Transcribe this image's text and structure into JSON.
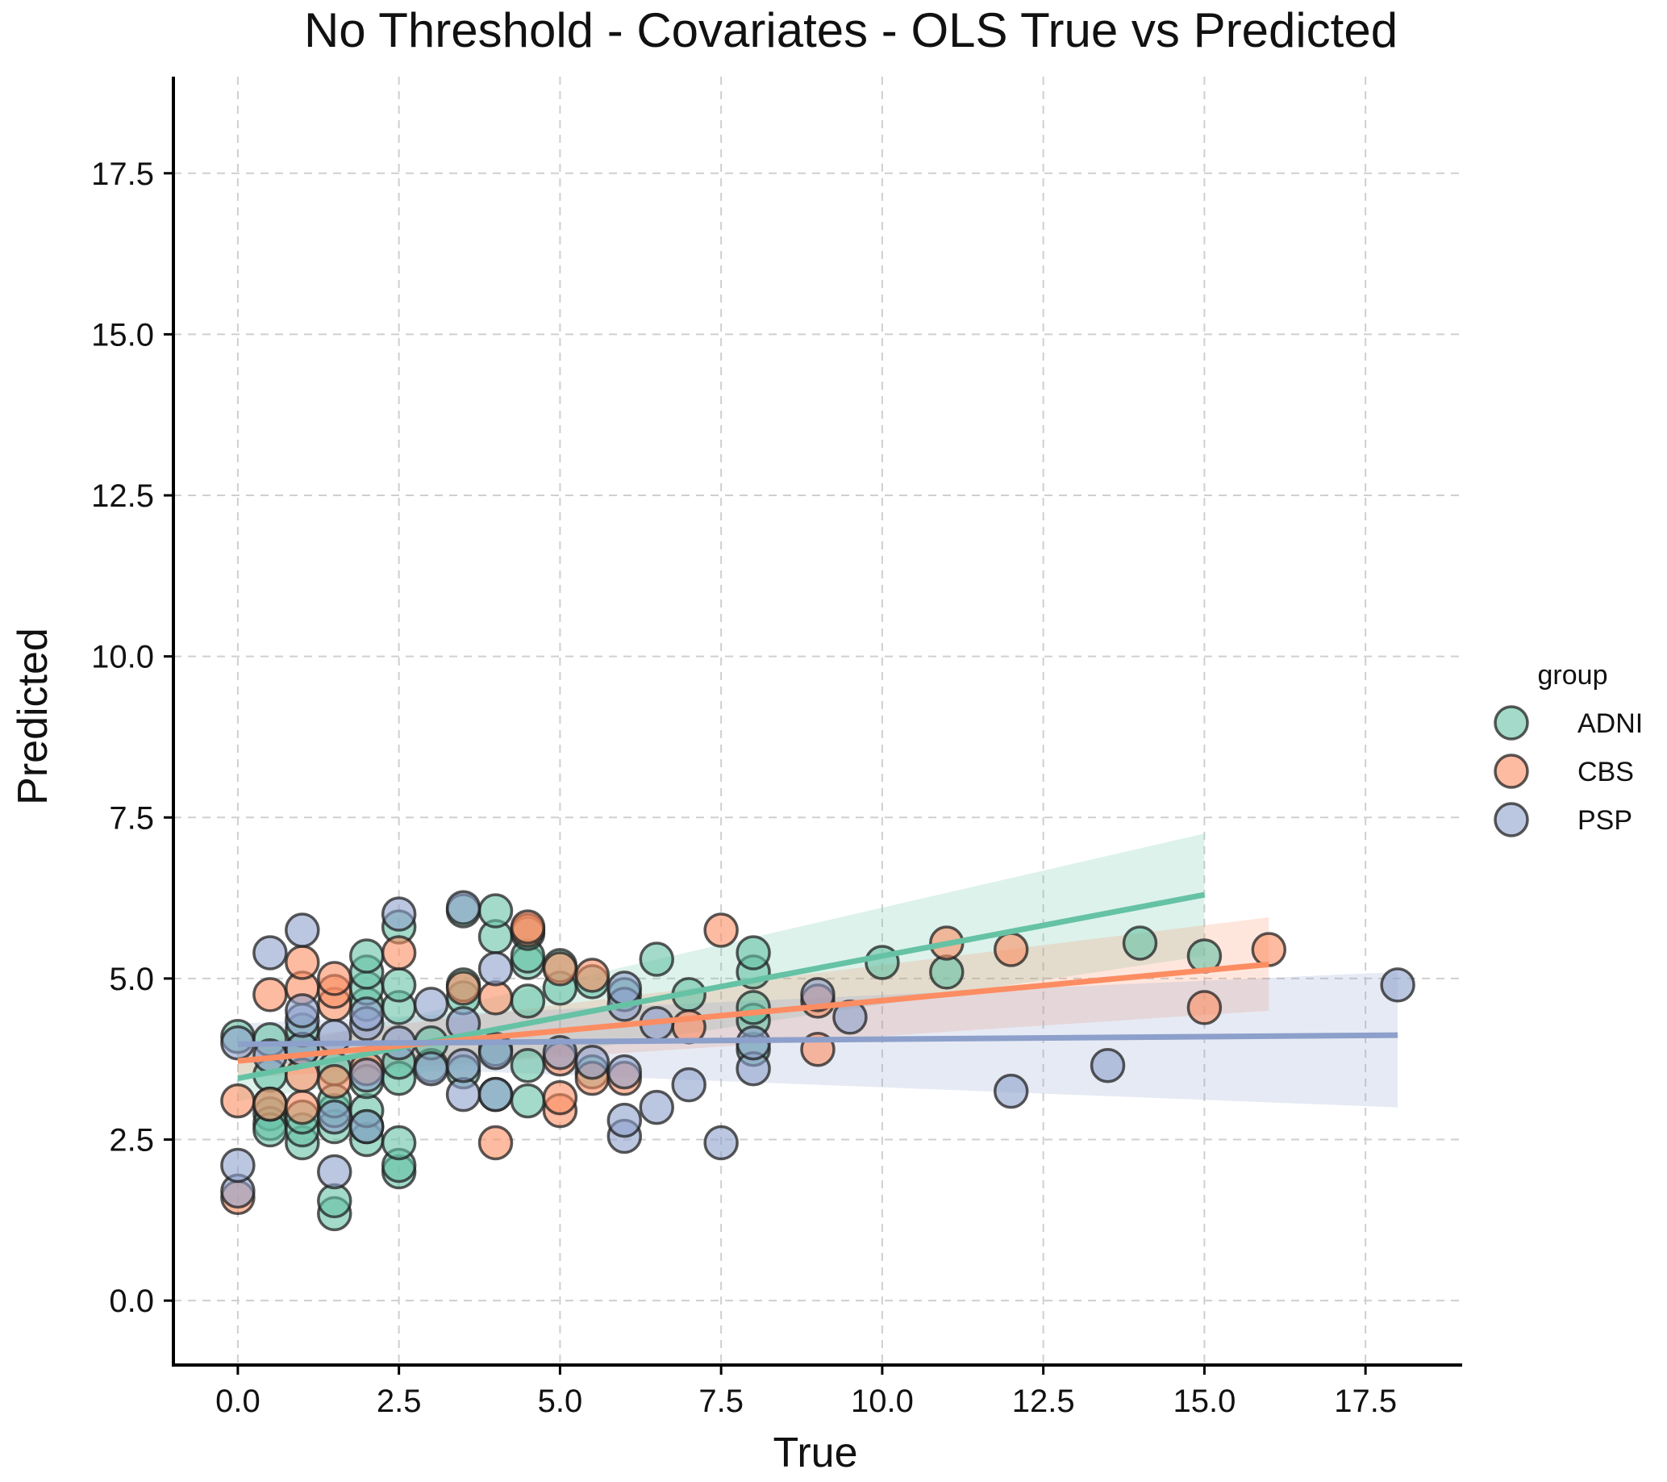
{
  "chart_data": {
    "type": "scatter",
    "title": "No Threshold - Covariates - OLS True vs Predicted",
    "xlabel": "True",
    "ylabel": "Predicted",
    "xlim": [
      -1.0,
      19.0
    ],
    "ylim": [
      -1.0,
      19.0
    ],
    "xticks": [
      0.0,
      2.5,
      5.0,
      7.5,
      10.0,
      12.5,
      15.0,
      17.5
    ],
    "yticks": [
      0.0,
      2.5,
      5.0,
      7.5,
      10.0,
      12.5,
      15.0,
      17.5
    ],
    "xtick_labels": [
      "0.0",
      "2.5",
      "5.0",
      "7.5",
      "10.0",
      "12.5",
      "15.0",
      "17.5"
    ],
    "ytick_labels": [
      "0.0",
      "2.5",
      "5.0",
      "7.5",
      "10.0",
      "12.5",
      "15.0",
      "17.5"
    ],
    "grid": true,
    "legend": {
      "title": "group",
      "placement": "right"
    },
    "series": [
      {
        "name": "ADNI",
        "color": "#66c2a5",
        "regression": {
          "x": [
            0.0,
            15.0
          ],
          "y": [
            3.45,
            6.3
          ],
          "ci_low": [
            3.1,
            5.35
          ],
          "ci_high": [
            3.8,
            7.25
          ]
        },
        "points": [
          [
            0.0,
            4.1
          ],
          [
            0.5,
            4.05
          ],
          [
            0.5,
            3.5
          ],
          [
            0.5,
            2.9
          ],
          [
            0.5,
            2.75
          ],
          [
            0.5,
            2.65
          ],
          [
            0.5,
            3.05
          ],
          [
            1.0,
            2.45
          ],
          [
            1.0,
            2.65
          ],
          [
            1.0,
            2.85
          ],
          [
            1.0,
            3.9
          ],
          [
            1.0,
            4.2
          ],
          [
            1.5,
            1.35
          ],
          [
            1.5,
            1.55
          ],
          [
            1.5,
            2.7
          ],
          [
            1.5,
            2.95
          ],
          [
            1.5,
            3.1
          ],
          [
            1.5,
            3.6
          ],
          [
            2.0,
            2.5
          ],
          [
            2.0,
            2.7
          ],
          [
            2.0,
            2.95
          ],
          [
            2.0,
            3.4
          ],
          [
            2.0,
            4.6
          ],
          [
            2.0,
            4.85
          ],
          [
            2.0,
            5.1
          ],
          [
            2.0,
            5.35
          ],
          [
            2.5,
            2.0
          ],
          [
            2.5,
            2.1
          ],
          [
            2.5,
            2.45
          ],
          [
            2.5,
            3.45
          ],
          [
            2.5,
            3.7
          ],
          [
            2.5,
            4.55
          ],
          [
            2.5,
            4.9
          ],
          [
            2.5,
            5.8
          ],
          [
            3.0,
            3.65
          ],
          [
            3.0,
            4.0
          ],
          [
            3.5,
            3.55
          ],
          [
            3.5,
            4.7
          ],
          [
            3.5,
            4.9
          ],
          [
            3.5,
            6.05
          ],
          [
            4.0,
            3.2
          ],
          [
            4.0,
            3.9
          ],
          [
            4.0,
            5.65
          ],
          [
            4.0,
            6.05
          ],
          [
            4.5,
            3.1
          ],
          [
            4.5,
            3.65
          ],
          [
            4.5,
            4.65
          ],
          [
            4.5,
            5.25
          ],
          [
            4.5,
            5.35
          ],
          [
            4.5,
            5.7
          ],
          [
            5.0,
            4.85
          ],
          [
            5.0,
            5.2
          ],
          [
            5.5,
            4.95
          ],
          [
            5.5,
            3.55
          ],
          [
            6.0,
            4.75
          ],
          [
            6.5,
            5.3
          ],
          [
            7.0,
            4.75
          ],
          [
            8.0,
            3.9
          ],
          [
            8.0,
            4.35
          ],
          [
            8.0,
            4.55
          ],
          [
            8.0,
            5.1
          ],
          [
            8.0,
            5.4
          ],
          [
            10.0,
            5.25
          ],
          [
            11.0,
            5.1
          ],
          [
            14.0,
            5.55
          ],
          [
            15.0,
            5.35
          ]
        ]
      },
      {
        "name": "CBS",
        "color": "#fc8d62",
        "regression": {
          "x": [
            0.0,
            16.0
          ],
          "y": [
            3.72,
            5.22
          ],
          "ci_low": [
            3.45,
            4.5
          ],
          "ci_high": [
            3.98,
            5.95
          ]
        },
        "points": [
          [
            0.0,
            1.6
          ],
          [
            0.0,
            3.1
          ],
          [
            0.5,
            3.05
          ],
          [
            0.5,
            4.75
          ],
          [
            1.0,
            3.0
          ],
          [
            1.0,
            3.5
          ],
          [
            1.0,
            4.85
          ],
          [
            1.0,
            5.25
          ],
          [
            1.5,
            3.4
          ],
          [
            1.5,
            4.6
          ],
          [
            1.5,
            4.8
          ],
          [
            1.5,
            5.0
          ],
          [
            2.0,
            3.6
          ],
          [
            2.5,
            5.4
          ],
          [
            3.5,
            4.85
          ],
          [
            4.0,
            2.45
          ],
          [
            4.0,
            4.7
          ],
          [
            4.5,
            5.75
          ],
          [
            4.5,
            5.8
          ],
          [
            5.0,
            2.95
          ],
          [
            5.0,
            3.15
          ],
          [
            5.0,
            3.75
          ],
          [
            5.0,
            5.15
          ],
          [
            5.5,
            3.45
          ],
          [
            5.5,
            5.05
          ],
          [
            6.0,
            3.45
          ],
          [
            7.0,
            4.25
          ],
          [
            7.5,
            5.75
          ],
          [
            9.0,
            3.9
          ],
          [
            9.0,
            4.65
          ],
          [
            11.0,
            5.55
          ],
          [
            12.0,
            5.45
          ],
          [
            15.0,
            4.55
          ],
          [
            16.0,
            5.45
          ]
        ]
      },
      {
        "name": "PSP",
        "color": "#8da0cb",
        "regression": {
          "x": [
            0.0,
            18.0
          ],
          "y": [
            3.98,
            4.12
          ],
          "ci_low": [
            3.7,
            3.0
          ],
          "ci_high": [
            4.3,
            5.1
          ]
        },
        "points": [
          [
            0.0,
            1.7
          ],
          [
            0.0,
            2.1
          ],
          [
            0.0,
            4.0
          ],
          [
            0.5,
            3.8
          ],
          [
            0.5,
            5.4
          ],
          [
            1.0,
            3.9
          ],
          [
            1.0,
            4.35
          ],
          [
            1.0,
            4.5
          ],
          [
            1.0,
            5.75
          ],
          [
            1.5,
            2.0
          ],
          [
            1.5,
            2.85
          ],
          [
            1.5,
            4.1
          ],
          [
            2.0,
            2.7
          ],
          [
            2.0,
            3.5
          ],
          [
            2.0,
            4.3
          ],
          [
            2.0,
            4.45
          ],
          [
            2.5,
            4.0
          ],
          [
            2.5,
            6.0
          ],
          [
            3.0,
            3.6
          ],
          [
            3.0,
            4.6
          ],
          [
            3.5,
            3.2
          ],
          [
            3.5,
            3.65
          ],
          [
            3.5,
            4.3
          ],
          [
            3.5,
            6.1
          ],
          [
            4.0,
            3.2
          ],
          [
            4.0,
            3.85
          ],
          [
            4.0,
            5.15
          ],
          [
            5.0,
            3.85
          ],
          [
            5.5,
            3.7
          ],
          [
            6.0,
            2.55
          ],
          [
            6.0,
            2.8
          ],
          [
            6.0,
            3.55
          ],
          [
            6.0,
            4.6
          ],
          [
            6.0,
            4.85
          ],
          [
            6.5,
            3.0
          ],
          [
            6.5,
            4.3
          ],
          [
            7.0,
            3.35
          ],
          [
            7.5,
            2.45
          ],
          [
            8.0,
            3.6
          ],
          [
            8.0,
            4.0
          ],
          [
            9.0,
            4.75
          ],
          [
            9.5,
            4.4
          ],
          [
            12.0,
            3.25
          ],
          [
            13.5,
            3.65
          ],
          [
            18.0,
            4.9
          ]
        ]
      }
    ]
  }
}
